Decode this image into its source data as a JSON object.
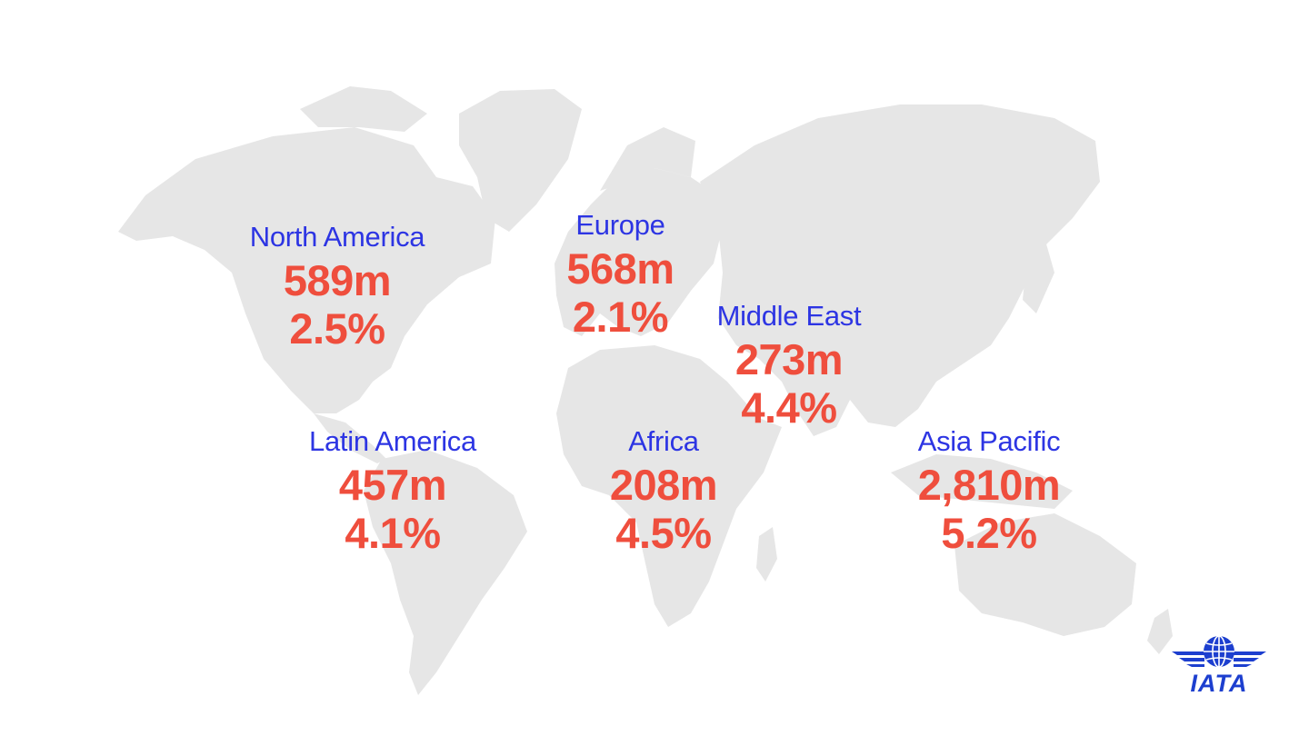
{
  "regions": [
    {
      "id": "north-america",
      "name": "North America",
      "passengers": "589m",
      "growth": "2.5%"
    },
    {
      "id": "europe",
      "name": "Europe",
      "passengers": "568m",
      "growth": "2.1%"
    },
    {
      "id": "middle-east",
      "name": "Middle East",
      "passengers": "273m",
      "growth": "4.4%"
    },
    {
      "id": "latin-america",
      "name": "Latin America",
      "passengers": "457m",
      "growth": "4.1%"
    },
    {
      "id": "africa",
      "name": "Africa",
      "passengers": "208m",
      "growth": "4.5%"
    },
    {
      "id": "asia-pacific",
      "name": "Asia Pacific",
      "passengers": "2,810m",
      "growth": "5.2%"
    }
  ],
  "logo": {
    "text": "IATA",
    "icon": "globe-wings-icon",
    "color": "#1d3fcf"
  },
  "colors": {
    "region_name": "#2d35e3",
    "figures": "#ef4e3d",
    "landmass": "#e6e6e6"
  }
}
